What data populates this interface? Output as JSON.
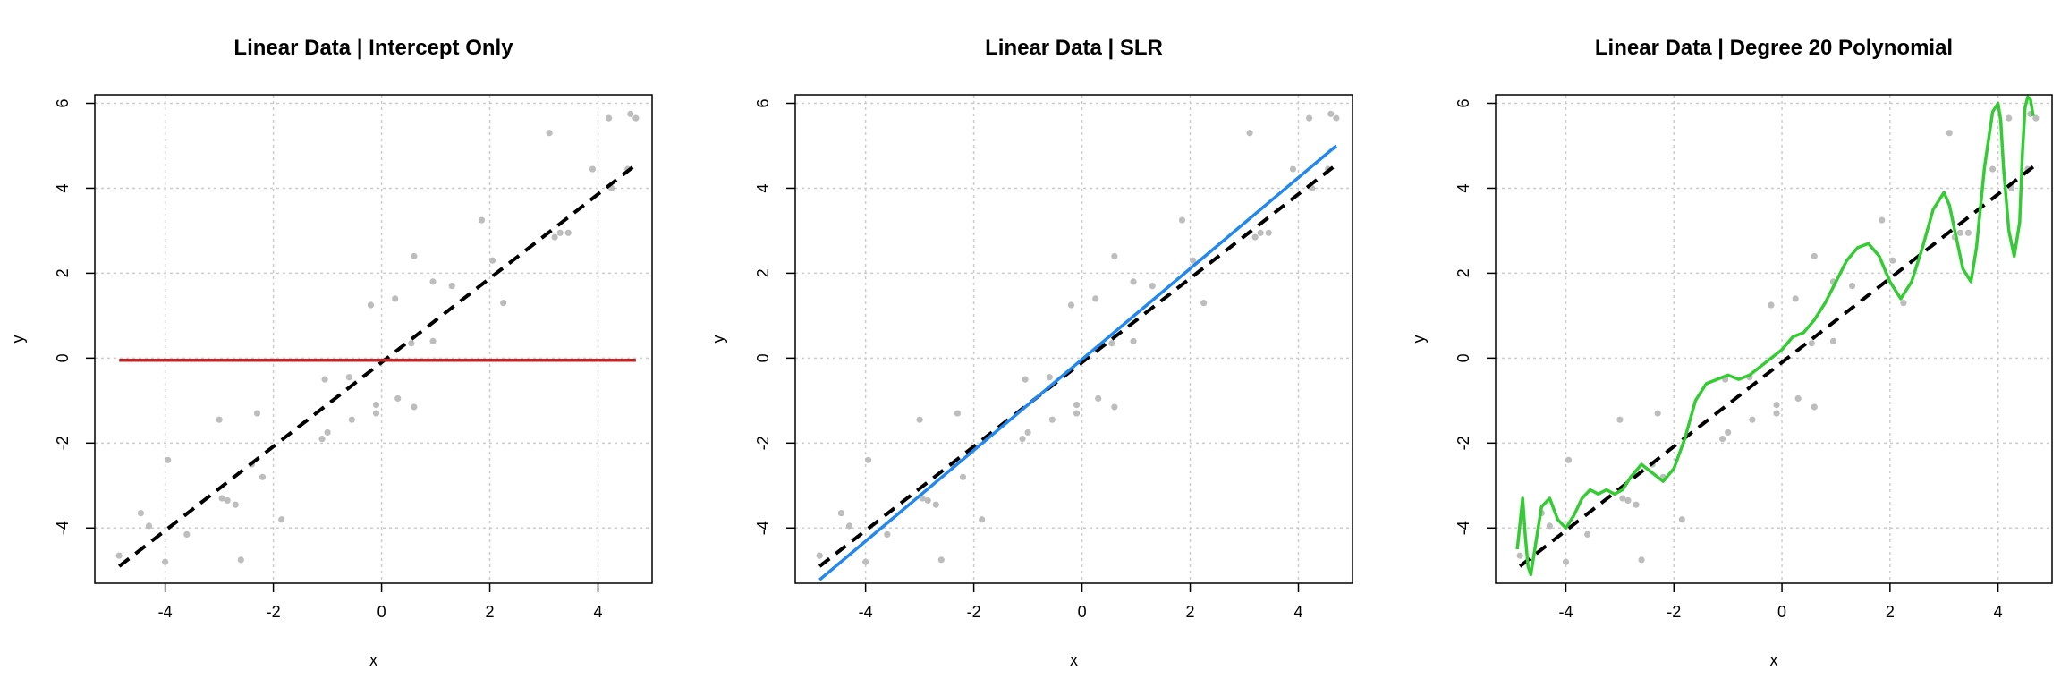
{
  "chart_data": [
    {
      "type": "scatter",
      "title": "Linear Data | Intercept Only",
      "xlabel": "x",
      "ylabel": "y",
      "xlim": [
        -5.3,
        5.0
      ],
      "ylim": [
        -5.3,
        6.2
      ],
      "xticks": [
        -4,
        -2,
        0,
        2,
        4
      ],
      "yticks": [
        -4,
        -2,
        0,
        2,
        4,
        6
      ],
      "grid": true,
      "points": [
        [
          -4.85,
          -4.65
        ],
        [
          -4.45,
          -3.65
        ],
        [
          -4.3,
          -3.95
        ],
        [
          -4.0,
          -4.8
        ],
        [
          -3.95,
          -2.4
        ],
        [
          -3.6,
          -4.15
        ],
        [
          -3.0,
          -1.45
        ],
        [
          -2.95,
          -3.3
        ],
        [
          -2.85,
          -3.35
        ],
        [
          -2.7,
          -3.45
        ],
        [
          -2.6,
          -4.75
        ],
        [
          -2.4,
          -2.5
        ],
        [
          -2.3,
          -1.3
        ],
        [
          -2.2,
          -2.8
        ],
        [
          -1.85,
          -3.8
        ],
        [
          -1.1,
          -1.9
        ],
        [
          -1.05,
          -0.5
        ],
        [
          -1.0,
          -1.75
        ],
        [
          -0.6,
          -0.45
        ],
        [
          -0.55,
          -1.45
        ],
        [
          -0.2,
          1.25
        ],
        [
          -0.1,
          -1.3
        ],
        [
          -0.1,
          -1.1
        ],
        [
          0.25,
          1.4
        ],
        [
          0.3,
          -0.95
        ],
        [
          0.55,
          0.35
        ],
        [
          0.6,
          2.4
        ],
        [
          0.6,
          -1.15
        ],
        [
          0.95,
          1.8
        ],
        [
          0.95,
          0.4
        ],
        [
          1.3,
          1.7
        ],
        [
          1.85,
          3.25
        ],
        [
          2.05,
          2.3
        ],
        [
          2.25,
          1.3
        ],
        [
          3.1,
          5.3
        ],
        [
          3.2,
          2.85
        ],
        [
          3.3,
          2.95
        ],
        [
          3.45,
          2.95
        ],
        [
          3.9,
          4.45
        ],
        [
          4.2,
          5.65
        ],
        [
          4.25,
          4.0
        ],
        [
          4.55,
          4.45
        ],
        [
          4.6,
          5.75
        ],
        [
          4.7,
          5.65
        ]
      ],
      "series": [
        {
          "name": "",
          "kind": "true-mean",
          "intercept": -0.1,
          "slope": 0.99,
          "color": "#000000",
          "dash": true
        },
        {
          "name": "",
          "kind": "fit",
          "model": "intercept-only",
          "value": -0.05,
          "color": "#cc2222"
        }
      ]
    },
    {
      "type": "scatter",
      "title": "Linear Data | SLR",
      "xlabel": "x",
      "ylabel": "y",
      "xlim": [
        -5.3,
        5.0
      ],
      "ylim": [
        -5.3,
        6.2
      ],
      "xticks": [
        -4,
        -2,
        0,
        2,
        4
      ],
      "yticks": [
        -4,
        -2,
        0,
        2,
        4,
        6
      ],
      "grid": true,
      "series": [
        {
          "name": "",
          "kind": "true-mean",
          "intercept": -0.1,
          "slope": 0.99,
          "color": "#000000",
          "dash": true
        },
        {
          "name": "",
          "kind": "fit",
          "model": "slr",
          "intercept": -0.03,
          "slope": 1.07,
          "color": "#2288ee"
        }
      ]
    },
    {
      "type": "scatter",
      "title": "Linear Data | Degree 20 Polynomial",
      "xlabel": "x",
      "ylabel": "y",
      "xlim": [
        -5.3,
        5.0
      ],
      "ylim": [
        -5.3,
        6.2
      ],
      "xticks": [
        -4,
        -2,
        0,
        2,
        4
      ],
      "yticks": [
        -4,
        -2,
        0,
        2,
        4,
        6
      ],
      "grid": true,
      "series": [
        {
          "name": "",
          "kind": "true-mean",
          "intercept": -0.1,
          "slope": 0.99,
          "color": "#000000",
          "dash": true
        },
        {
          "name": "",
          "kind": "fit",
          "model": "degree-20-polynomial",
          "color": "#33cc33",
          "x": [
            -4.9,
            -4.8,
            -4.75,
            -4.7,
            -4.65,
            -4.55,
            -4.45,
            -4.3,
            -4.15,
            -4.0,
            -3.85,
            -3.7,
            -3.55,
            -3.4,
            -3.25,
            -3.1,
            -2.95,
            -2.8,
            -2.6,
            -2.4,
            -2.2,
            -2.0,
            -1.8,
            -1.6,
            -1.4,
            -1.2,
            -1.0,
            -0.8,
            -0.6,
            -0.4,
            -0.2,
            0.0,
            0.2,
            0.4,
            0.6,
            0.8,
            1.0,
            1.2,
            1.4,
            1.6,
            1.8,
            2.0,
            2.2,
            2.4,
            2.6,
            2.8,
            3.0,
            3.1,
            3.2,
            3.35,
            3.5,
            3.6,
            3.75,
            3.9,
            4.0,
            4.05,
            4.1,
            4.2,
            4.3,
            4.4,
            4.45,
            4.5,
            4.55,
            4.6,
            4.65
          ],
          "y": [
            -4.5,
            -3.3,
            -4.2,
            -4.9,
            -5.1,
            -4.3,
            -3.5,
            -3.3,
            -3.8,
            -4.0,
            -3.7,
            -3.3,
            -3.1,
            -3.2,
            -3.1,
            -3.2,
            -3.1,
            -2.8,
            -2.5,
            -2.7,
            -2.9,
            -2.6,
            -1.9,
            -1.0,
            -0.6,
            -0.5,
            -0.4,
            -0.5,
            -0.4,
            -0.2,
            0.0,
            0.2,
            0.5,
            0.6,
            0.9,
            1.3,
            1.8,
            2.3,
            2.6,
            2.7,
            2.4,
            1.8,
            1.4,
            1.8,
            2.6,
            3.5,
            3.9,
            3.6,
            3.0,
            2.1,
            1.8,
            2.6,
            4.5,
            5.8,
            6.0,
            5.6,
            4.5,
            3.0,
            2.4,
            3.2,
            4.8,
            5.9,
            6.15,
            6.1,
            5.7
          ]
        }
      ]
    }
  ]
}
